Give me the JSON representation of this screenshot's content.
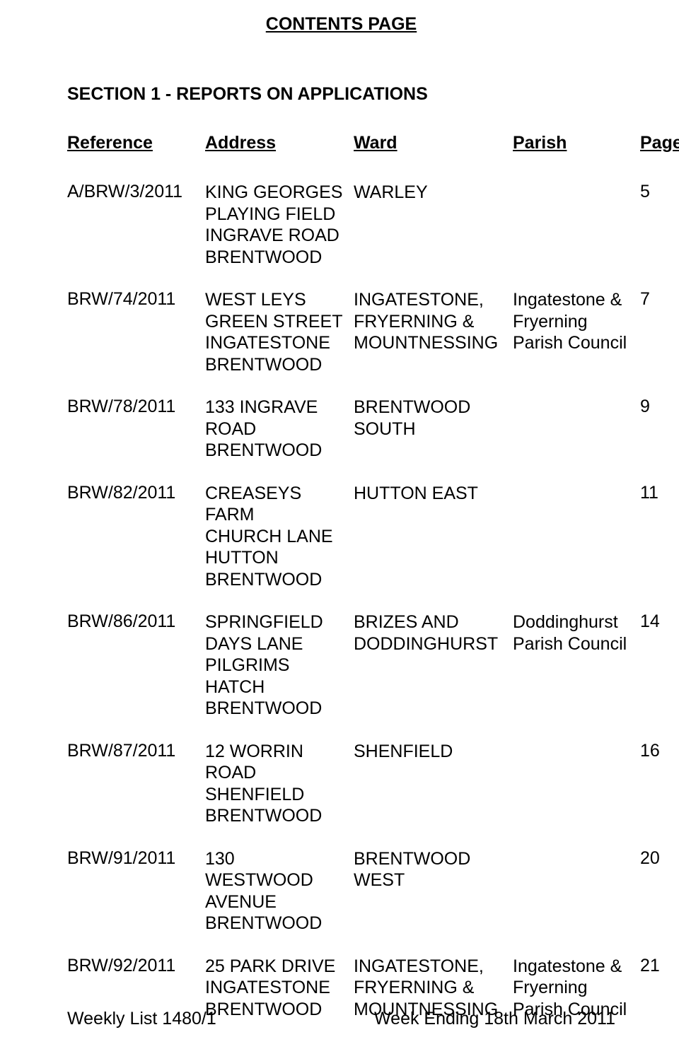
{
  "title": "CONTENTS PAGE",
  "section_heading": "SECTION 1 - REPORTS ON APPLICATIONS",
  "columns": {
    "ref": "Reference",
    "addr": "Address",
    "ward": "Ward",
    "parish": "Parish",
    "page": "Page"
  },
  "rows": [
    {
      "ref": "A/BRW/3/2011",
      "addr": "KING GEORGES\nPLAYING FIELD\nINGRAVE ROAD\nBRENTWOOD",
      "ward": "WARLEY",
      "parish": "",
      "page": "5"
    },
    {
      "ref": "BRW/74/2011",
      "addr": "WEST LEYS\nGREEN STREET\nINGATESTONE\nBRENTWOOD",
      "ward": "INGATESTONE,\nFRYERNING &\nMOUNTNESSING",
      "parish": "Ingatestone &\nFryerning\nParish Council",
      "page": "7"
    },
    {
      "ref": "BRW/78/2011",
      "addr": "133 INGRAVE\nROAD\nBRENTWOOD",
      "ward": "BRENTWOOD\nSOUTH",
      "parish": "",
      "page": "9"
    },
    {
      "ref": "BRW/82/2011",
      "addr": "CREASEYS\nFARM\nCHURCH LANE\nHUTTON\nBRENTWOOD",
      "ward": "HUTTON EAST",
      "parish": "",
      "page": "11"
    },
    {
      "ref": "BRW/86/2011",
      "addr": "SPRINGFIELD\nDAYS LANE\nPILGRIMS\nHATCH\nBRENTWOOD",
      "ward": "BRIZES AND\nDODDINGHURST",
      "parish": "Doddinghurst\nParish Council",
      "page": "14"
    },
    {
      "ref": "BRW/87/2011",
      "addr": "12 WORRIN\nROAD\nSHENFIELD\nBRENTWOOD",
      "ward": "SHENFIELD",
      "parish": "",
      "page": "16"
    },
    {
      "ref": "BRW/91/2011",
      "addr": "130\nWESTWOOD\nAVENUE\nBRENTWOOD",
      "ward": "BRENTWOOD\nWEST",
      "parish": "",
      "page": "20"
    },
    {
      "ref": "BRW/92/2011",
      "addr": "25 PARK DRIVE\nINGATESTONE\nBRENTWOOD",
      "ward": "INGATESTONE,\nFRYERNING &\nMOUNTNESSING",
      "parish": "Ingatestone &\nFryerning\nParish Council",
      "page": "21"
    }
  ],
  "footer": {
    "left": "Weekly List 1480/1",
    "right": "Week Ending 18th March 2011"
  }
}
